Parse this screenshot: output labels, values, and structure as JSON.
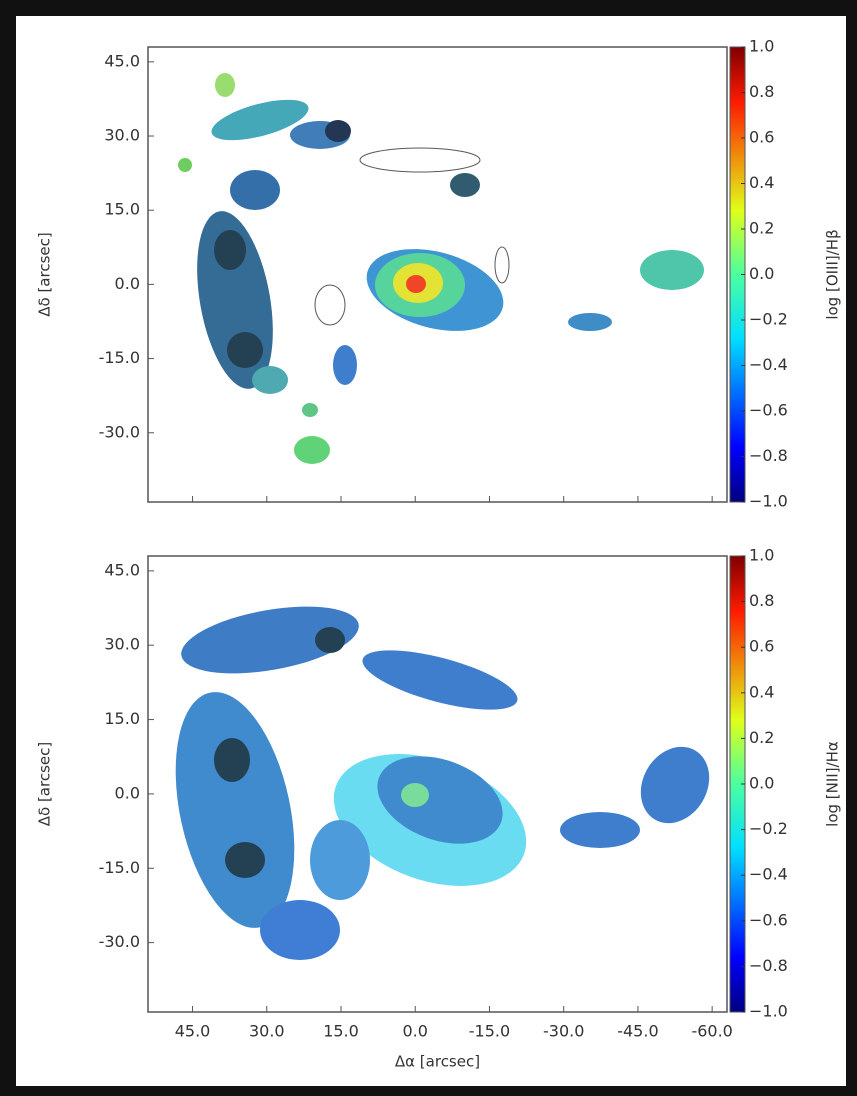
{
  "chart_data": [
    {
      "type": "heatmap",
      "colormap": "jet",
      "ylabel": "Δδ [arcsec]",
      "colorbar_label": "log [OIII]/Hβ",
      "xlim": [
        54,
        -63
      ],
      "ylim": [
        -44,
        48
      ],
      "yticks": [
        {
          "value": 45,
          "label": "45.0"
        },
        {
          "value": 30,
          "label": "30.0"
        },
        {
          "value": 15,
          "label": "15.0"
        },
        {
          "value": 0,
          "label": "0.0"
        },
        {
          "value": -15,
          "label": "-15.0"
        },
        {
          "value": -30,
          "label": "-30.0"
        }
      ],
      "clim": [
        -1,
        1
      ],
      "cticks": [
        {
          "value": 1,
          "label": "1.0"
        },
        {
          "value": 0.8,
          "label": "0.8"
        },
        {
          "value": 0.6,
          "label": "0.6"
        },
        {
          "value": 0.4,
          "label": "0.4"
        },
        {
          "value": 0.2,
          "label": "0.2"
        },
        {
          "value": 0,
          "label": "0.0"
        },
        {
          "value": -0.2,
          "label": "−0.2"
        },
        {
          "value": -0.4,
          "label": "−0.4"
        },
        {
          "value": -0.6,
          "label": "−0.6"
        },
        {
          "value": -0.8,
          "label": "−0.8"
        },
        {
          "value": -1,
          "label": "−1.0"
        }
      ]
    },
    {
      "type": "heatmap",
      "colormap": "jet",
      "xlabel": "Δα [arcsec]",
      "ylabel": "Δδ [arcsec]",
      "colorbar_label": "log [NII]/Hα",
      "xlim": [
        54,
        -63
      ],
      "ylim": [
        -44,
        48
      ],
      "xticks": [
        {
          "value": 45,
          "label": "45.0"
        },
        {
          "value": 30,
          "label": "30.0"
        },
        {
          "value": 15,
          "label": "15.0"
        },
        {
          "value": 0,
          "label": "0.0"
        },
        {
          "value": -15,
          "label": "-15.0"
        },
        {
          "value": -30,
          "label": "-30.0"
        },
        {
          "value": -45,
          "label": "-45.0"
        },
        {
          "value": -60,
          "label": "-60.0"
        }
      ],
      "yticks": [
        {
          "value": 45,
          "label": "45.0"
        },
        {
          "value": 30,
          "label": "30.0"
        },
        {
          "value": 15,
          "label": "15.0"
        },
        {
          "value": 0,
          "label": "0.0"
        },
        {
          "value": -15,
          "label": "-15.0"
        },
        {
          "value": -30,
          "label": "-30.0"
        }
      ],
      "clim": [
        -1,
        1
      ],
      "cticks": [
        {
          "value": 1,
          "label": "1.0"
        },
        {
          "value": 0.8,
          "label": "0.8"
        },
        {
          "value": 0.6,
          "label": "0.6"
        },
        {
          "value": 0.4,
          "label": "0.4"
        },
        {
          "value": 0.2,
          "label": "0.2"
        },
        {
          "value": 0,
          "label": "0.0"
        },
        {
          "value": -0.2,
          "label": "−0.2"
        },
        {
          "value": -0.4,
          "label": "−0.4"
        },
        {
          "value": -0.6,
          "label": "−0.6"
        },
        {
          "value": -0.8,
          "label": "−0.8"
        },
        {
          "value": -1,
          "label": "−1.0"
        }
      ]
    }
  ]
}
